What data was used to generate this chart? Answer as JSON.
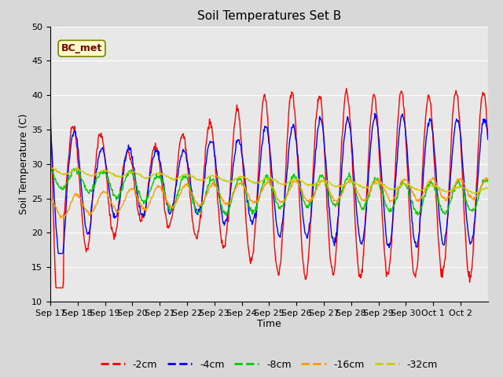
{
  "title": "Soil Temperatures Set B",
  "xlabel": "Time",
  "ylabel": "Soil Temperature (C)",
  "ylim": [
    10,
    50
  ],
  "yticks": [
    10,
    15,
    20,
    25,
    30,
    35,
    40,
    45,
    50
  ],
  "annotation": "BC_met",
  "colors": {
    "-2cm": "#ff0000",
    "-4cm": "#0000ff",
    "-8cm": "#00cc00",
    "-16cm": "#ff9900",
    "-32cm": "#cccc00"
  },
  "legend_labels": [
    "-2cm",
    "-4cm",
    "-8cm",
    "-16cm",
    "-32cm"
  ],
  "background_color": "#e8e8e8",
  "grid_color": "#ffffff",
  "title_fontsize": 11,
  "label_fontsize": 9,
  "tick_fontsize": 8,
  "n_days": 16,
  "points_per_day": 48,
  "x_tick_labels": [
    "Sep 17",
    "Sep 18",
    "Sep 19",
    "Sep 20",
    "Sep 21",
    "Sep 22",
    "Sep 23",
    "Sep 24",
    "Sep 25",
    "Sep 26",
    "Sep 27",
    "Sep 28",
    "Sep 29",
    "Sep 30",
    "Oct 1",
    "Oct 2"
  ]
}
